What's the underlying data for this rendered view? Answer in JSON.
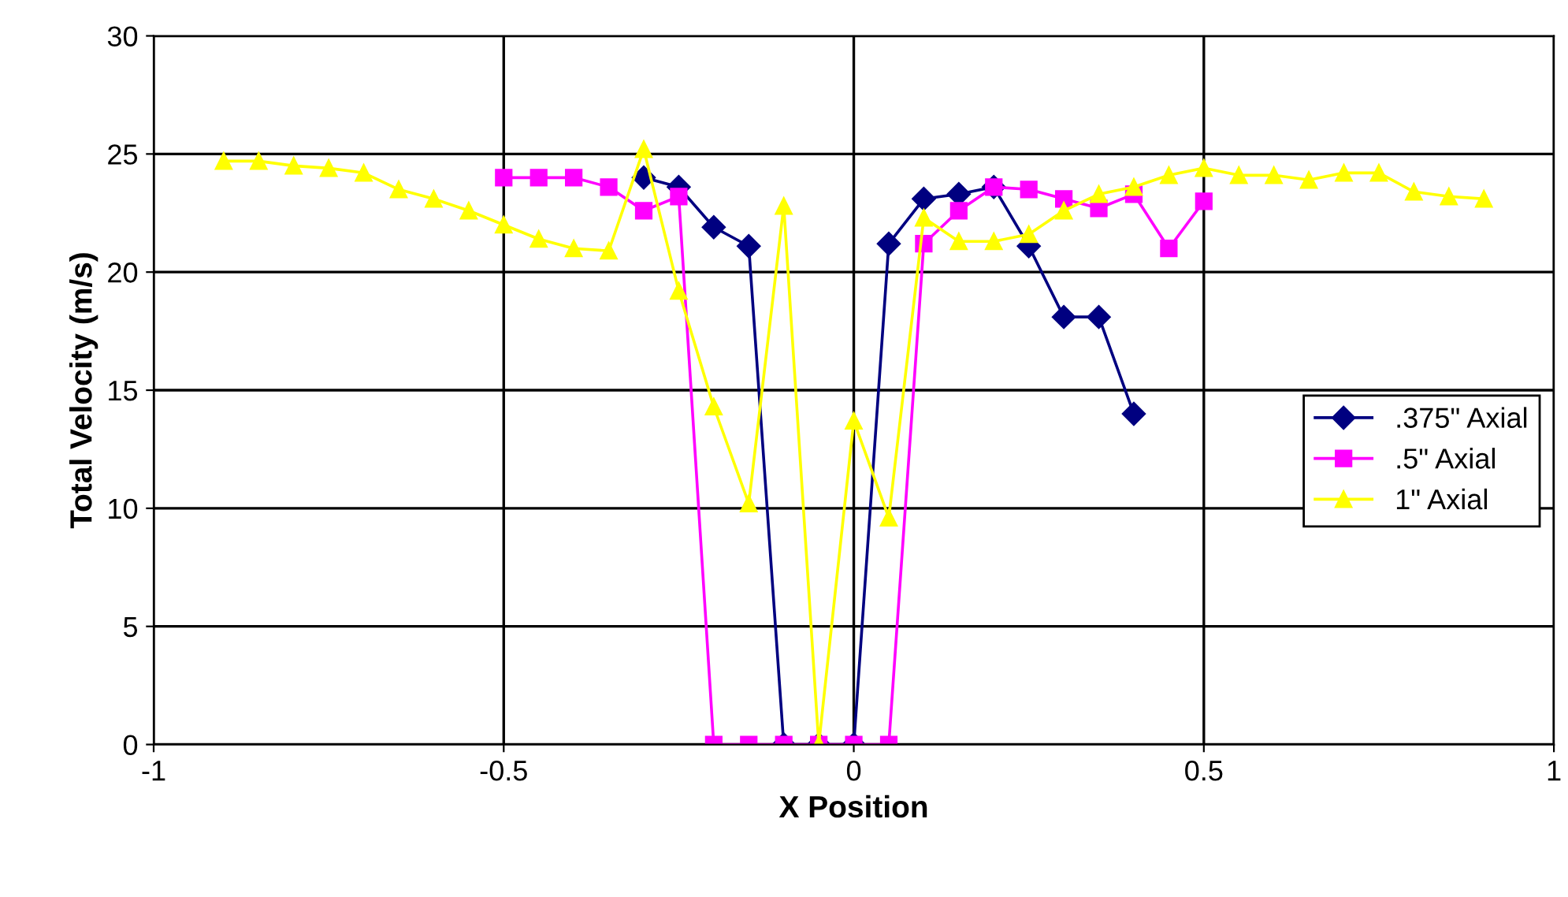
{
  "chart_data": {
    "type": "line",
    "xlabel": "X Position",
    "ylabel": "Total Velocity (m/s)",
    "xlim": [
      -1,
      1
    ],
    "xticks": [
      -1,
      -0.5,
      0,
      0.5,
      1
    ],
    "ylim": [
      0,
      30
    ],
    "yticks": [
      0,
      5,
      10,
      15,
      20,
      25,
      30
    ],
    "grid": true,
    "legend": "right",
    "series": [
      {
        "name": ".375\" Axial",
        "color": "#000080",
        "marker": "diamond",
        "x": [
          -0.3,
          -0.25,
          -0.2,
          -0.15,
          -0.1,
          -0.05,
          0,
          0.05,
          0.1,
          0.15,
          0.2,
          0.25,
          0.3,
          0.35,
          0.4
        ],
        "values": [
          24.0,
          23.6,
          21.9,
          21.1,
          0,
          0,
          0,
          21.2,
          23.1,
          23.3,
          23.6,
          21.1,
          18.1,
          18.1,
          14.0
        ]
      },
      {
        "name": ".5\" Axial",
        "color": "#ff00ff",
        "marker": "square",
        "x": [
          -0.5,
          -0.45,
          -0.4,
          -0.35,
          -0.3,
          -0.25,
          -0.2,
          -0.15,
          -0.1,
          -0.05,
          0,
          0.05,
          0.1,
          0.15,
          0.2,
          0.25,
          0.3,
          0.35,
          0.4,
          0.45,
          0.5
        ],
        "values": [
          24.0,
          24.0,
          24.0,
          23.6,
          22.6,
          23.2,
          0,
          0,
          0,
          0,
          0,
          0,
          21.2,
          22.6,
          23.6,
          23.5,
          23.1,
          22.7,
          23.3,
          21.0,
          23.0
        ]
      },
      {
        "name": "1\" Axial",
        "color": "#ffff00",
        "marker": "triangle",
        "x": [
          -0.9,
          -0.85,
          -0.8,
          -0.75,
          -0.7,
          -0.65,
          -0.6,
          -0.55,
          -0.5,
          -0.45,
          -0.4,
          -0.35,
          -0.3,
          -0.25,
          -0.2,
          -0.15,
          -0.1,
          -0.05,
          0,
          0.05,
          0.1,
          0.15,
          0.2,
          0.25,
          0.3,
          0.35,
          0.4,
          0.45,
          0.5,
          0.55,
          0.6,
          0.65,
          0.7,
          0.75,
          0.8,
          0.85,
          0.9
        ],
        "values": [
          24.7,
          24.7,
          24.5,
          24.4,
          24.2,
          23.5,
          23.1,
          22.6,
          22.0,
          21.4,
          21.0,
          20.9,
          25.2,
          19.2,
          14.3,
          10.2,
          22.8,
          0,
          13.7,
          9.6,
          22.3,
          21.3,
          21.3,
          21.6,
          22.6,
          23.3,
          23.6,
          24.1,
          24.4,
          24.1,
          24.1,
          23.9,
          24.2,
          24.2,
          23.4,
          23.2,
          23.1
        ]
      }
    ]
  }
}
